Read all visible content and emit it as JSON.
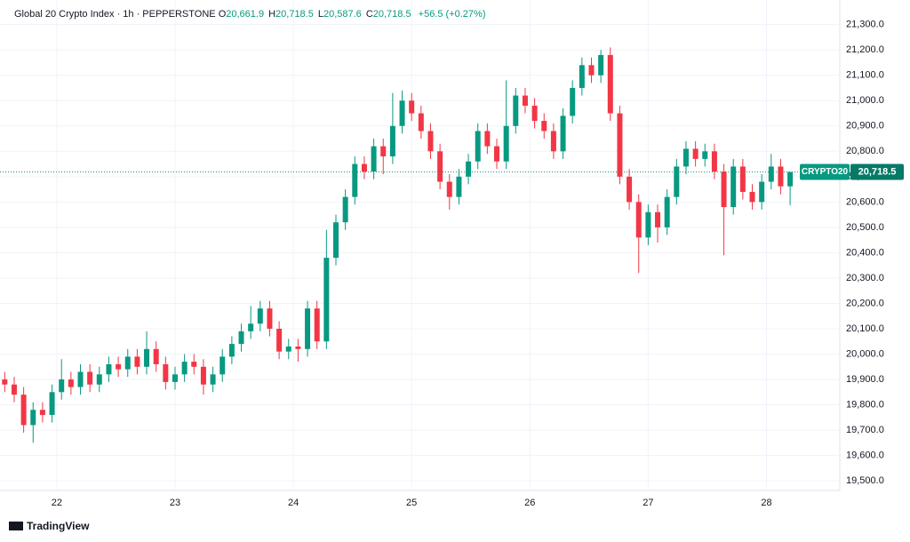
{
  "header": {
    "title": "Global 20 Crypto Index · 1h · PEPPERSTONE",
    "ohlc": [
      {
        "key": "O",
        "value": "20,661.9"
      },
      {
        "key": "H",
        "value": "20,718.5"
      },
      {
        "key": "L",
        "value": "20,587.6"
      },
      {
        "key": "C",
        "value": "20,718.5"
      }
    ],
    "change": "+56.5 (+0.27%)"
  },
  "footer": {
    "brand": "TradingView"
  },
  "chart_data": {
    "type": "candlestick",
    "symbol": "CRYPTO20",
    "up_color": "#089981",
    "down_color": "#f23645",
    "last_price": 20718.5,
    "price_label": "20,718.5",
    "xlim": [
      21.52,
      28.62
    ],
    "ylim": [
      19462,
      21397
    ],
    "xticks": [
      22,
      23,
      24,
      25,
      26,
      27,
      28
    ],
    "yticks": [
      {
        "value": 19500,
        "label": "19,500.0"
      },
      {
        "value": 19600,
        "label": "19,600.0"
      },
      {
        "value": 19700,
        "label": "19,700.0"
      },
      {
        "value": 19800,
        "label": "19,800.0"
      },
      {
        "value": 19900,
        "label": "19,900.0"
      },
      {
        "value": 20000,
        "label": "20,000.0"
      },
      {
        "value": 20100,
        "label": "20,100.0"
      },
      {
        "value": 20200,
        "label": "20,200.0"
      },
      {
        "value": 20300,
        "label": "20,300.0"
      },
      {
        "value": 20400,
        "label": "20,400.0"
      },
      {
        "value": 20500,
        "label": "20,500.0"
      },
      {
        "value": 20600,
        "label": "20,600.0"
      },
      {
        "value": 20700,
        "label": "20,700.0"
      },
      {
        "value": 20800,
        "label": "20,800.0"
      },
      {
        "value": 20900,
        "label": "20,900.0"
      },
      {
        "value": 21000,
        "label": "21,000.0"
      },
      {
        "value": 21100,
        "label": "21,100.0"
      },
      {
        "value": 21200,
        "label": "21,200.0"
      },
      {
        "value": 21300,
        "label": "21,300.0"
      }
    ],
    "x": [
      21.56,
      21.64,
      21.72,
      21.8,
      21.88,
      21.96,
      22.04,
      22.12,
      22.2,
      22.28,
      22.36,
      22.44,
      22.52,
      22.6,
      22.68,
      22.76,
      22.84,
      22.92,
      23.0,
      23.08,
      23.16,
      23.24,
      23.32,
      23.4,
      23.48,
      23.56,
      23.64,
      23.72,
      23.8,
      23.88,
      23.96,
      24.04,
      24.12,
      24.2,
      24.28,
      24.36,
      24.44,
      24.52,
      24.6,
      24.68,
      24.76,
      24.84,
      24.92,
      25.0,
      25.08,
      25.16,
      25.24,
      25.32,
      25.4,
      25.48,
      25.56,
      25.64,
      25.72,
      25.8,
      25.88,
      25.96,
      26.04,
      26.12,
      26.2,
      26.28,
      26.36,
      26.44,
      26.52,
      26.6,
      26.68,
      26.76,
      26.84,
      26.92,
      27.0,
      27.08,
      27.16,
      27.24,
      27.32,
      27.4,
      27.48,
      27.56,
      27.64,
      27.72,
      27.8,
      27.88,
      27.96,
      28.04,
      28.12,
      28.2
    ],
    "open": [
      19900,
      19880,
      19840,
      19720,
      19780,
      19760,
      19850,
      19900,
      19870,
      19930,
      19880,
      19920,
      19960,
      19940,
      19990,
      19950,
      20020,
      19960,
      19890,
      19920,
      19970,
      19950,
      19880,
      19920,
      19990,
      20040,
      20090,
      20120,
      20180,
      20100,
      20010,
      20030,
      20020,
      20180,
      20050,
      20380,
      20520,
      20620,
      20750,
      20720,
      20820,
      20780,
      20900,
      21000,
      20950,
      20880,
      20800,
      20680,
      20620,
      20700,
      20760,
      20880,
      20820,
      20760,
      20900,
      21020,
      20980,
      20920,
      20880,
      20800,
      20940,
      21050,
      21140,
      21100,
      21180,
      20950,
      20700,
      20600,
      20460,
      20560,
      20500,
      20620,
      20740,
      20810,
      20770,
      20800,
      20720,
      20580,
      20740,
      20640,
      20600,
      20680,
      20740,
      20661.9
    ],
    "high": [
      19930,
      19910,
      19870,
      19810,
      19810,
      19880,
      19980,
      19930,
      19960,
      19960,
      19950,
      19990,
      19990,
      20020,
      20020,
      20090,
      20050,
      19990,
      19950,
      20000,
      20000,
      19980,
      19950,
      20020,
      20070,
      20120,
      20190,
      20210,
      20210,
      20130,
      20060,
      20060,
      20210,
      20210,
      20490,
      20550,
      20650,
      20780,
      20780,
      20850,
      20850,
      21030,
      21040,
      21030,
      20980,
      20910,
      20830,
      20710,
      20730,
      20790,
      20910,
      20910,
      20850,
      21080,
      21050,
      21050,
      21010,
      20950,
      20910,
      20970,
      21080,
      21170,
      21170,
      21200,
      21210,
      20980,
      20730,
      20630,
      20590,
      20590,
      20650,
      20770,
      20840,
      20840,
      20830,
      20830,
      20750,
      20770,
      20770,
      20670,
      20710,
      20790,
      20770,
      20718.5
    ],
    "low": [
      19850,
      19810,
      19690,
      19650,
      19730,
      19730,
      19820,
      19840,
      19840,
      19850,
      19850,
      19890,
      19910,
      19910,
      19920,
      19920,
      19930,
      19860,
      19860,
      19890,
      19920,
      19840,
      19850,
      19890,
      19960,
      20010,
      20060,
      20090,
      20070,
      19980,
      19980,
      19970,
      19990,
      20020,
      20020,
      20350,
      20490,
      20590,
      20690,
      20690,
      20710,
      20750,
      20870,
      20920,
      20850,
      20770,
      20650,
      20570,
      20590,
      20670,
      20730,
      20790,
      20730,
      20730,
      20870,
      20950,
      20890,
      20850,
      20770,
      20770,
      20910,
      21020,
      21070,
      21070,
      20920,
      20670,
      20570,
      20320,
      20430,
      20440,
      20470,
      20590,
      20710,
      20740,
      20740,
      20690,
      20390,
      20550,
      20610,
      20570,
      20570,
      20650,
      20630,
      20587.6
    ],
    "close": [
      19880,
      19840,
      19720,
      19780,
      19760,
      19850,
      19900,
      19870,
      19930,
      19880,
      19920,
      19960,
      19940,
      19990,
      19950,
      20020,
      19960,
      19890,
      19920,
      19970,
      19950,
      19880,
      19920,
      19990,
      20040,
      20090,
      20120,
      20180,
      20100,
      20010,
      20030,
      20020,
      20180,
      20050,
      20380,
      20520,
      20620,
      20750,
      20720,
      20820,
      20780,
      20900,
      21000,
      20950,
      20880,
      20800,
      20680,
      20620,
      20700,
      20760,
      20880,
      20820,
      20760,
      20900,
      21020,
      20980,
      20920,
      20880,
      20800,
      20940,
      21050,
      21140,
      21100,
      21180,
      20950,
      20700,
      20600,
      20460,
      20560,
      20500,
      20620,
      20740,
      20810,
      20770,
      20800,
      20720,
      20580,
      20740,
      20640,
      20600,
      20680,
      20740,
      20661.9,
      20718.5
    ]
  }
}
